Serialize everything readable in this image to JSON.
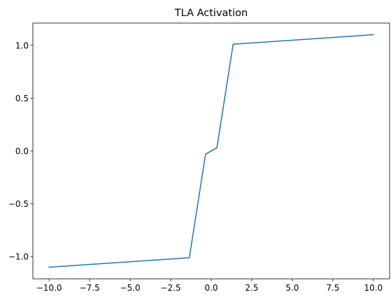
{
  "chart_data": {
    "type": "line",
    "title": "TLA Activation",
    "xlabel": "",
    "ylabel": "",
    "xlim": [
      -11.0,
      11.0
    ],
    "ylim": [
      -1.21,
      1.21
    ],
    "x_ticks": [
      -10.0,
      -7.5,
      -5.0,
      -2.5,
      0.0,
      2.5,
      5.0,
      7.5,
      10.0
    ],
    "x_tick_labels": [
      "−10.0",
      "−7.5",
      "−5.0",
      "−2.5",
      "0.0",
      "2.5",
      "5.0",
      "7.5",
      "10.0"
    ],
    "y_ticks": [
      -1.0,
      -0.5,
      0.0,
      0.5,
      1.0
    ],
    "y_tick_labels": [
      "−1.0",
      "−0.5",
      "0.0",
      "0.5",
      "1.0"
    ],
    "grid": false,
    "legend": "none",
    "series": [
      {
        "color": "#1f77b4",
        "x": [
          -10.0,
          -1.35,
          -0.35,
          0.35,
          1.35,
          10.0
        ],
        "y": [
          -1.1,
          -1.01,
          -0.03,
          0.03,
          1.01,
          1.1
        ]
      }
    ]
  }
}
